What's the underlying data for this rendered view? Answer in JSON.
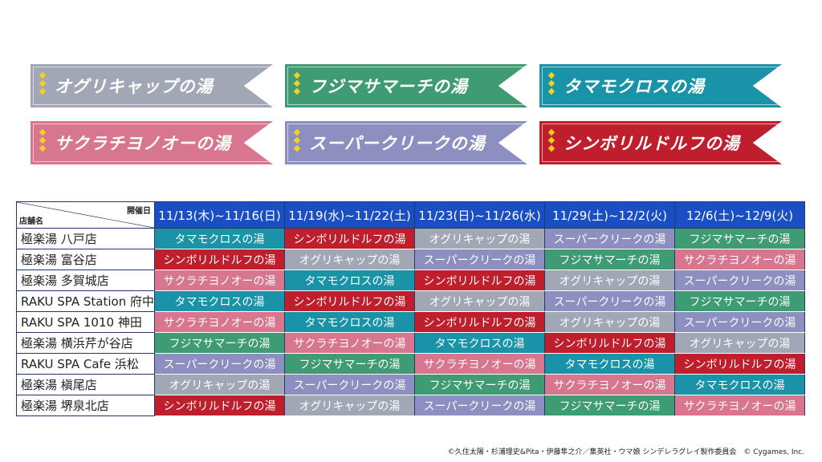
{
  "colors": {
    "oguri": "#a2a7b6",
    "fuji": "#3f9b74",
    "tama": "#1a93a8",
    "sakura": "#d8768f",
    "creek": "#8c8fbf",
    "symboli": "#bf1f2c",
    "header": "#1a4fc4"
  },
  "events": {
    "oguri": "オグリキャップの湯",
    "fuji": "フジマサマーチの湯",
    "tama": "タマモクロスの湯",
    "sakura": "サクラチヨノオーの湯",
    "creek": "スーパークリークの湯",
    "symboli": "シンボリルドルフの湯"
  },
  "banners": [
    "oguri",
    "fuji",
    "tama",
    "sakura",
    "creek",
    "symboli"
  ],
  "table": {
    "corner_top": "開催日",
    "corner_bottom": "店舗名",
    "dates": [
      "11/13(木)~11/16(日)",
      "11/19(水)~11/22(土)",
      "11/23(日)~11/26(水)",
      "11/29(土)~12/2(火)",
      "12/6(土)~12/9(火)"
    ],
    "rows": [
      {
        "store": "極楽湯 八戸店",
        "cells": [
          "tama",
          "symboli",
          "oguri",
          "creek",
          "fuji"
        ]
      },
      {
        "store": "極楽湯 富谷店",
        "cells": [
          "symboli",
          "oguri",
          "creek",
          "fuji",
          "sakura"
        ]
      },
      {
        "store": "極楽湯 多賀城店",
        "cells": [
          "sakura",
          "tama",
          "symboli",
          "oguri",
          "creek"
        ]
      },
      {
        "store": "RAKU SPA Station 府中",
        "cells": [
          "tama",
          "symboli",
          "oguri",
          "creek",
          "fuji"
        ]
      },
      {
        "store": "RAKU SPA 1010 神田",
        "cells": [
          "sakura",
          "tama",
          "symboli",
          "oguri",
          "creek"
        ]
      },
      {
        "store": "極楽湯 横浜芹が谷店",
        "cells": [
          "fuji",
          "sakura",
          "tama",
          "symboli",
          "oguri"
        ]
      },
      {
        "store": "RAKU SPA Cafe 浜松",
        "cells": [
          "creek",
          "fuji",
          "sakura",
          "tama",
          "symboli"
        ]
      },
      {
        "store": "極楽湯 槇尾店",
        "cells": [
          "oguri",
          "creek",
          "fuji",
          "sakura",
          "tama"
        ]
      },
      {
        "store": "極楽湯 堺泉北店",
        "cells": [
          "symboli",
          "oguri",
          "creek",
          "fuji",
          "sakura"
        ]
      }
    ]
  },
  "copyright": "©久住太陽・杉浦理史&Pita・伊藤隼之介／集英社・ウマ娘 シンデレラグレイ製作委員会　© Cygames, Inc."
}
